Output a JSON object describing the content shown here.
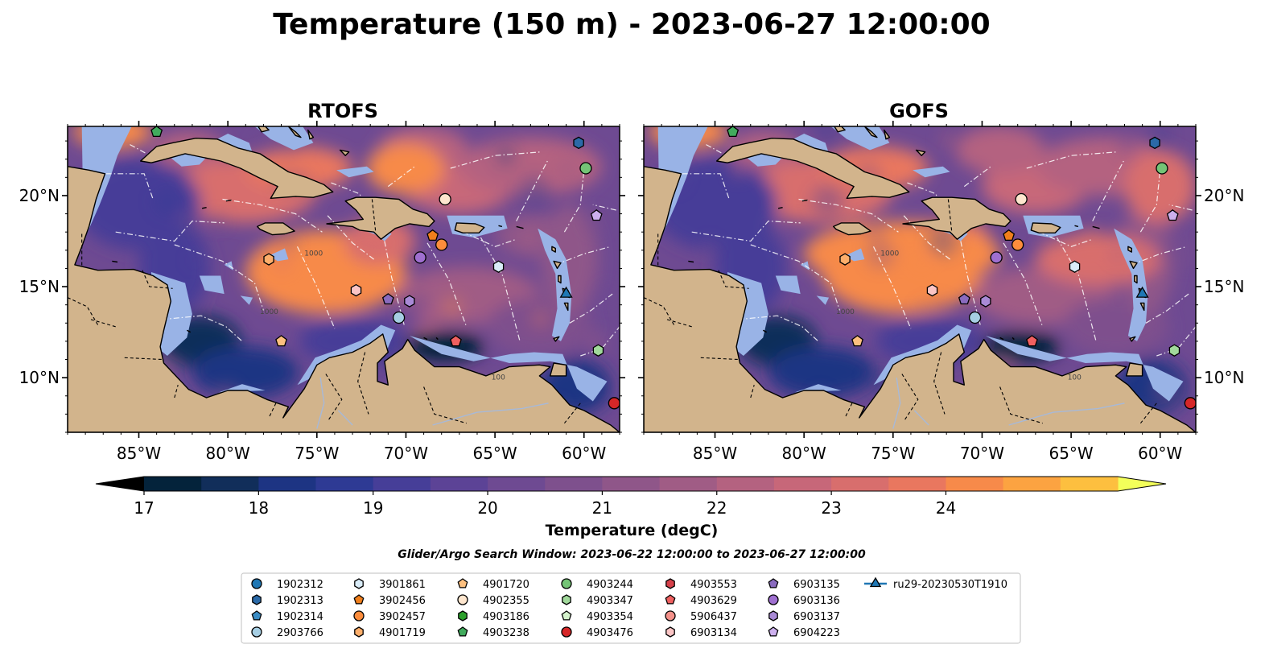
{
  "title": "Temperature (150 m) - 2023-06-27 12:00:00",
  "panels": [
    {
      "title": "RTOFS"
    },
    {
      "title": "GOFS"
    }
  ],
  "map": {
    "lon_range": [
      -89,
      -58
    ],
    "lat_range": [
      7,
      23.8
    ],
    "lon_ticks": [
      {
        "value": -85,
        "label": "85°W"
      },
      {
        "value": -80,
        "label": "80°W"
      },
      {
        "value": -75,
        "label": "75°W"
      },
      {
        "value": -70,
        "label": "70°W"
      },
      {
        "value": -65,
        "label": "65°W"
      },
      {
        "value": -60,
        "label": "60°W"
      }
    ],
    "lat_ticks": [
      {
        "value": 10,
        "label": "10°N"
      },
      {
        "value": 15,
        "label": "15°N"
      },
      {
        "value": 20,
        "label": "20°N"
      }
    ],
    "isobath_labels": [
      {
        "lon": -78.2,
        "lat": 13.5,
        "label": "1000"
      },
      {
        "lon": -65.2,
        "lat": 9.9,
        "label": "100"
      },
      {
        "lon": -75.7,
        "lat": 16.7,
        "label": "1000"
      }
    ],
    "colors": {
      "land": "#d2b48c",
      "shelf": "#99b3e6",
      "coastline": "#000000",
      "contour": "#ffffff"
    }
  },
  "colorbar": {
    "label": "Temperature (degC)",
    "ticks": [
      17,
      18,
      19,
      20,
      21,
      22,
      23,
      24
    ],
    "range": [
      17,
      24.5
    ],
    "step": 0.5,
    "colors": [
      "#04233b",
      "#112e5a",
      "#1d3483",
      "#2e3a94",
      "#463e98",
      "#5c4396",
      "#6e4a92",
      "#7e508d",
      "#8f5689",
      "#a05c85",
      "#b46280",
      "#c76779",
      "#d86e6d",
      "#e9775f",
      "#f78a4a",
      "#fca341",
      "#fdbf3f",
      "#f8df4a"
    ]
  },
  "search_window": "Glider/Argo Search Window: 2023-06-22 12:00:00 to 2023-06-27 12:00:00",
  "legend": [
    {
      "id": "1902312",
      "marker": "circle",
      "color": "#1f77b4",
      "lon": null,
      "lat": null
    },
    {
      "id": "1902313",
      "marker": "hexagon",
      "color": "#2b6aa8",
      "lon": -60.3,
      "lat": 22.9
    },
    {
      "id": "1902314",
      "marker": "pentagon",
      "color": "#3a8cc4",
      "lon": null,
      "lat": null
    },
    {
      "id": "2903766",
      "marker": "circle",
      "color": "#a6cee3",
      "lon": -70.4,
      "lat": 13.3
    },
    {
      "id": "3901861",
      "marker": "hexagon",
      "color": "#d9ecf8",
      "lon": -64.8,
      "lat": 16.1
    },
    {
      "id": "3902456",
      "marker": "pentagon",
      "color": "#f07f1c",
      "lon": -68.5,
      "lat": 17.8
    },
    {
      "id": "3902457",
      "marker": "circle",
      "color": "#fd8d3c",
      "lon": -68.0,
      "lat": 17.3
    },
    {
      "id": "4901719",
      "marker": "hexagon",
      "color": "#fdae6b",
      "lon": -77.7,
      "lat": 16.5
    },
    {
      "id": "4901720",
      "marker": "pentagon",
      "color": "#fdc07f",
      "lon": -77.0,
      "lat": 12.0
    },
    {
      "id": "4902355",
      "marker": "circle",
      "color": "#fee6ce",
      "lon": -67.8,
      "lat": 19.8
    },
    {
      "id": "4903186",
      "marker": "hexagon",
      "color": "#2ca02c",
      "lon": null,
      "lat": null
    },
    {
      "id": "4903238",
      "marker": "pentagon",
      "color": "#41ab5d",
      "lon": -84.0,
      "lat": 23.5
    },
    {
      "id": "4903244",
      "marker": "circle",
      "color": "#74c476",
      "lon": -59.9,
      "lat": 21.5
    },
    {
      "id": "4903347",
      "marker": "hexagon",
      "color": "#a1d99b",
      "lon": -59.2,
      "lat": 11.5
    },
    {
      "id": "4903354",
      "marker": "pentagon",
      "color": "#d4f2cc",
      "lon": null,
      "lat": null
    },
    {
      "id": "4903476",
      "marker": "circle",
      "color": "#d62728",
      "lon": -58.3,
      "lat": 8.6
    },
    {
      "id": "4903553",
      "marker": "hexagon",
      "color": "#d6404a",
      "lon": null,
      "lat": null
    },
    {
      "id": "4903629",
      "marker": "pentagon",
      "color": "#f06060",
      "lon": -67.2,
      "lat": 12.0
    },
    {
      "id": "5906437",
      "marker": "circle",
      "color": "#f4918a",
      "lon": null,
      "lat": null
    },
    {
      "id": "6903134",
      "marker": "hexagon",
      "color": "#fbc5c5",
      "lon": -72.8,
      "lat": 14.8
    },
    {
      "id": "6903135",
      "marker": "pentagon",
      "color": "#8a6bbf",
      "lon": -71.0,
      "lat": 14.3
    },
    {
      "id": "6903136",
      "marker": "circle",
      "color": "#9f6fd0",
      "lon": -69.2,
      "lat": 16.6
    },
    {
      "id": "6903137",
      "marker": "hexagon",
      "color": "#a98ad6",
      "lon": -69.8,
      "lat": 14.2
    },
    {
      "id": "6904223",
      "marker": "pentagon",
      "color": "#cdb0ee",
      "lon": -59.3,
      "lat": 18.9
    },
    {
      "id": "ru29-20230530T1910",
      "marker": "triangle",
      "color": "#1f77b4",
      "lon": -61.0,
      "lat": 14.6
    }
  ]
}
